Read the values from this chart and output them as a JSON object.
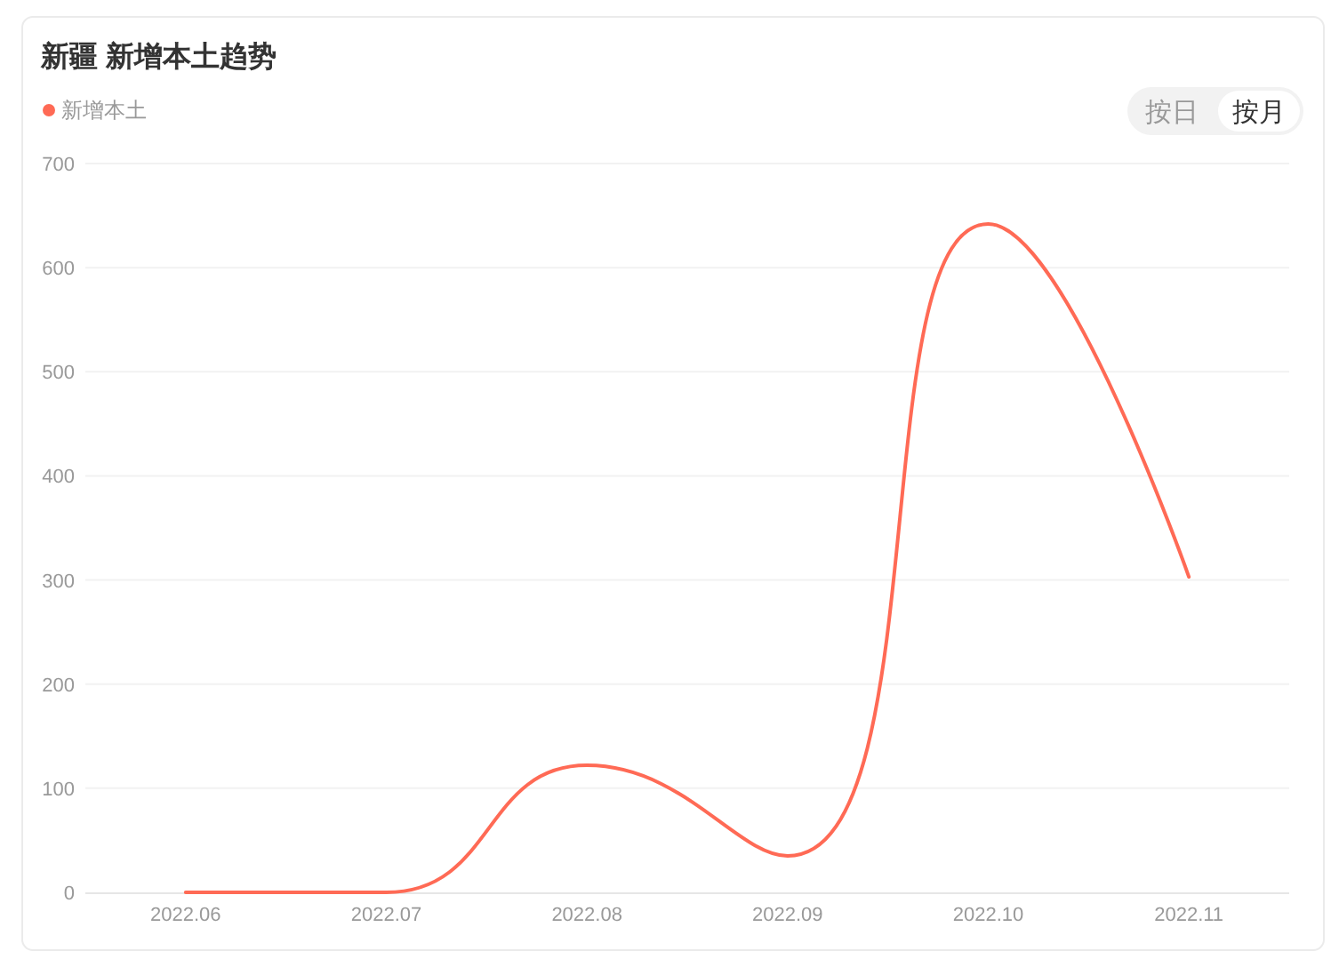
{
  "chart_data": {
    "type": "line",
    "title": "新疆 新增本土趋势",
    "categories": [
      "2022.06",
      "2022.07",
      "2022.08",
      "2022.09",
      "2022.10",
      "2022.11"
    ],
    "series": [
      {
        "name": "新增本土",
        "color": "#ff6a55",
        "values": [
          0,
          0,
          122,
          35,
          642,
          303
        ]
      }
    ],
    "ylim": [
      0,
      700
    ],
    "yticks": [
      0,
      100,
      200,
      300,
      400,
      500,
      600,
      700
    ],
    "grid": "y",
    "legend": "top left",
    "marker": "none",
    "line_style": "solid",
    "annotations": [
      "按日",
      "按月"
    ]
  }
}
